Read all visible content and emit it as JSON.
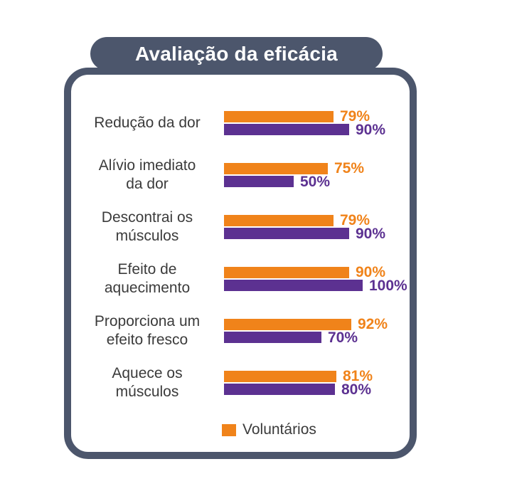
{
  "header": {
    "title": "Avaliação da eficácia"
  },
  "colors": {
    "frame": "#4C566C",
    "volunteers_orange": "#F0831A",
    "second_purple": "#5C3191",
    "label_text": "#3B3B3B",
    "background": "#FFFFFF",
    "title_text": "#FFFFFF"
  },
  "legend": {
    "items": [
      {
        "label": "Voluntários",
        "color": "#F0831A"
      }
    ]
  },
  "chart_data": {
    "type": "bar",
    "orientation": "horizontal",
    "title": "Avaliação da eficácia",
    "unit": "%",
    "value_range": [
      0,
      100
    ],
    "grid": false,
    "data_labels": true,
    "legend_position": "bottom",
    "categories": [
      "Redução da dor",
      "Alívio imediato da dor",
      "Descontrai os músculos",
      "Efeito de aquecimento",
      "Proporciona um efeito fresco",
      "Aquece os músculos"
    ],
    "categories_lines": [
      [
        "Redução da dor"
      ],
      [
        "Alívio imediato",
        "da dor"
      ],
      [
        "Descontrai os",
        "músculos"
      ],
      [
        "Efeito de",
        "aquecimento"
      ],
      [
        "Proporciona um",
        "efeito fresco"
      ],
      [
        "Aquece os",
        "músculos"
      ]
    ],
    "series": [
      {
        "key": "volunteers",
        "name": "Voluntários",
        "color": "#F0831A",
        "values": [
          79,
          75,
          79,
          90,
          92,
          81
        ]
      },
      {
        "key": "series2",
        "name": "",
        "color": "#5C3191",
        "values": [
          90,
          50,
          90,
          100,
          70,
          80
        ]
      }
    ]
  }
}
